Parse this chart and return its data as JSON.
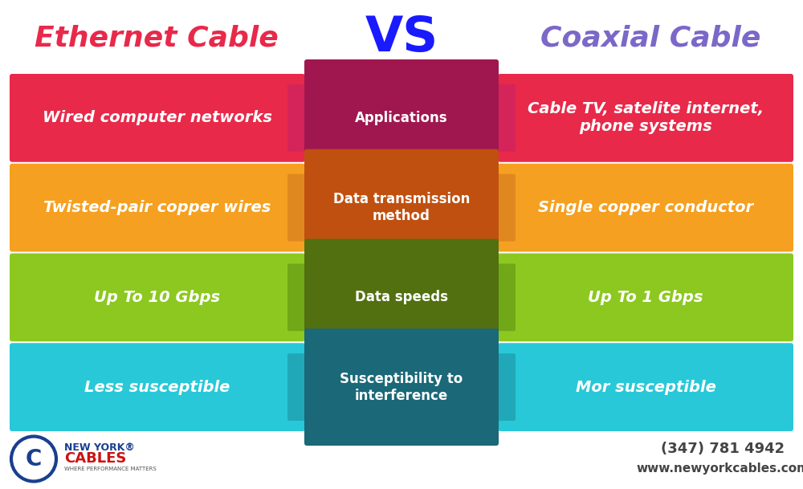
{
  "title_left": "Ethernet Cable",
  "title_vs": "VS",
  "title_right": "Coaxial Cable",
  "title_left_color": "#E8294A",
  "title_vs_color": "#1a1aff",
  "title_right_color": "#7B68C8",
  "bg_color": "#ffffff",
  "rows": [
    {
      "left_text": "Wired computer networks",
      "center_text": "Applications",
      "right_text": "Cable TV, satelite internet,\nphone systems",
      "left_color": "#E8294A",
      "center_color": "#A0174F",
      "right_color": "#E8294A",
      "connector_color": "#D4245A"
    },
    {
      "left_text": "Twisted-pair copper wires",
      "center_text": "Data transmission\nmethod",
      "right_text": "Single copper conductor",
      "left_color": "#F5A020",
      "center_color": "#C05010",
      "right_color": "#F5A020",
      "connector_color": "#E08820"
    },
    {
      "left_text": "Up To 10 Gbps",
      "center_text": "Data speeds",
      "right_text": "Up To 1 Gbps",
      "left_color": "#8CC820",
      "center_color": "#527010",
      "right_color": "#8CC820",
      "connector_color": "#70A818"
    },
    {
      "left_text": "Less susceptible",
      "center_text": "Susceptibility to\ninterference",
      "right_text": "Mor susceptible",
      "left_color": "#28C8D8",
      "center_color": "#1A6878",
      "right_color": "#28C8D8",
      "connector_color": "#20A8B8"
    }
  ],
  "footer_phone": "(347) 781 4942",
  "footer_web": "www.newyorkcables.com",
  "footer_color": "#444444"
}
